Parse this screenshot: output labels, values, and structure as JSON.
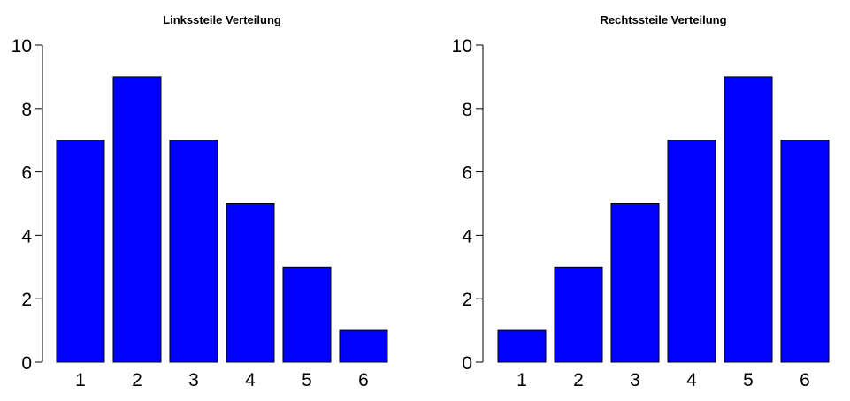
{
  "chart_data": [
    {
      "type": "bar",
      "title": "Linkssteile Verteilung",
      "categories": [
        "1",
        "2",
        "3",
        "4",
        "5",
        "6"
      ],
      "values": [
        7,
        9,
        7,
        5,
        3,
        1
      ],
      "xlabel": "",
      "ylabel": "",
      "ylim": [
        0,
        10
      ],
      "yticks": [
        "0",
        "2",
        "4",
        "6",
        "8",
        "10"
      ],
      "bar_color": "#0000ff",
      "grid": false
    },
    {
      "type": "bar",
      "title": "Rechtssteile Verteilung",
      "categories": [
        "1",
        "2",
        "3",
        "4",
        "5",
        "6"
      ],
      "values": [
        1,
        3,
        5,
        7,
        9,
        7
      ],
      "xlabel": "",
      "ylabel": "",
      "ylim": [
        0,
        10
      ],
      "yticks": [
        "0",
        "2",
        "4",
        "6",
        "8",
        "10"
      ],
      "bar_color": "#0000ff",
      "grid": false
    }
  ]
}
